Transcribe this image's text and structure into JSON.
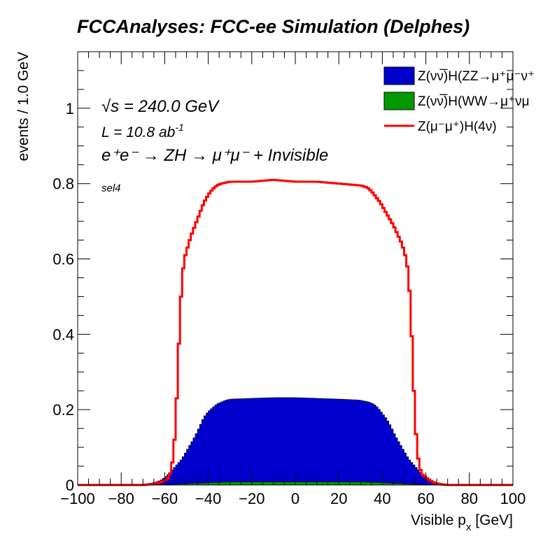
{
  "chart_data": {
    "type": "area",
    "title": "FCCAnalyses: FCC-ee Simulation (Delphes)",
    "xlabel_main": "Visible p",
    "xlabel_sub": "x",
    "xlabel_unit": " [GeV]",
    "ylabel": "events / 1.0 GeV",
    "xlim": [
      -100,
      100
    ],
    "ylim": [
      0,
      1.15
    ],
    "x_ticks": [
      "−100",
      "−80",
      "−60",
      "−40",
      "−20",
      "0",
      "20",
      "40",
      "60",
      "80",
      "100"
    ],
    "y_ticks": [
      "0",
      "0.2",
      "0.4",
      "0.6",
      "0.8",
      "1"
    ],
    "grid": false,
    "legend_placement": "top-right",
    "annotations": {
      "sqrt_symbol": "√",
      "sqrt_s": "s",
      "energy": " = 240.0 GeV",
      "lumi": "L = 10.8 ab",
      "lumi_exp": "-1",
      "process": "e⁺e⁻ → ZH → μ⁺μ⁻ + Invisible",
      "selection": "sel4"
    },
    "series": [
      {
        "name": "Z(νν̅)H(ZZ→μ⁺μ⁻ν⁺",
        "kind": "stack-fill",
        "color": "#0000cc",
        "points": [
          [
            -80,
            0
          ],
          [
            -70,
            0.002
          ],
          [
            -65,
            0.006
          ],
          [
            -62,
            0.012
          ],
          [
            -60,
            0.02
          ],
          [
            -58,
            0.03
          ],
          [
            -55,
            0.05
          ],
          [
            -52,
            0.07
          ],
          [
            -50,
            0.09
          ],
          [
            -48,
            0.11
          ],
          [
            -46,
            0.13
          ],
          [
            -44,
            0.155
          ],
          [
            -42,
            0.18
          ],
          [
            -40,
            0.195
          ],
          [
            -38,
            0.205
          ],
          [
            -36,
            0.215
          ],
          [
            -34,
            0.22
          ],
          [
            -32,
            0.225
          ],
          [
            -30,
            0.228
          ],
          [
            -20,
            0.23
          ],
          [
            -10,
            0.232
          ],
          [
            0,
            0.232
          ],
          [
            10,
            0.23
          ],
          [
            20,
            0.228
          ],
          [
            28,
            0.226
          ],
          [
            30,
            0.225
          ],
          [
            34,
            0.22
          ],
          [
            36,
            0.215
          ],
          [
            38,
            0.205
          ],
          [
            40,
            0.19
          ],
          [
            42,
            0.175
          ],
          [
            44,
            0.155
          ],
          [
            46,
            0.13
          ],
          [
            48,
            0.11
          ],
          [
            50,
            0.09
          ],
          [
            52,
            0.07
          ],
          [
            55,
            0.05
          ],
          [
            58,
            0.03
          ],
          [
            60,
            0.02
          ],
          [
            62,
            0.012
          ],
          [
            65,
            0.006
          ],
          [
            70,
            0.002
          ],
          [
            80,
            0
          ]
        ]
      },
      {
        "name": "Z(νν̅)H(WW→μ⁺νμ",
        "kind": "stack-fill",
        "color": "#009900",
        "points": [
          [
            -65,
            0
          ],
          [
            -55,
            0.002
          ],
          [
            -40,
            0.006
          ],
          [
            -30,
            0.008
          ],
          [
            -20,
            0.008
          ],
          [
            0,
            0.008
          ],
          [
            20,
            0.008
          ],
          [
            30,
            0.008
          ],
          [
            40,
            0.006
          ],
          [
            55,
            0.002
          ],
          [
            65,
            0
          ]
        ]
      },
      {
        "name": "Z(μ⁻μ⁺)H(4ν)",
        "kind": "line",
        "color": "#ff0000",
        "points": [
          [
            -100,
            0
          ],
          [
            -70,
            0
          ],
          [
            -68,
            0.001
          ],
          [
            -66,
            0.002
          ],
          [
            -64,
            0.004
          ],
          [
            -62,
            0.007
          ],
          [
            -60,
            0.012
          ],
          [
            -58,
            0.02
          ],
          [
            -57,
            0.04
          ],
          [
            -56,
            0.08
          ],
          [
            -55,
            0.16
          ],
          [
            -54,
            0.3
          ],
          [
            -53,
            0.45
          ],
          [
            -52,
            0.55
          ],
          [
            -51,
            0.6
          ],
          [
            -50,
            0.62
          ],
          [
            -49,
            0.64
          ],
          [
            -48,
            0.66
          ],
          [
            -46,
            0.69
          ],
          [
            -44,
            0.72
          ],
          [
            -42,
            0.75
          ],
          [
            -40,
            0.77
          ],
          [
            -38,
            0.785
          ],
          [
            -36,
            0.795
          ],
          [
            -34,
            0.8
          ],
          [
            -30,
            0.805
          ],
          [
            -20,
            0.805
          ],
          [
            -10,
            0.81
          ],
          [
            0,
            0.805
          ],
          [
            10,
            0.805
          ],
          [
            20,
            0.8
          ],
          [
            30,
            0.795
          ],
          [
            33,
            0.79
          ],
          [
            35,
            0.78
          ],
          [
            37,
            0.765
          ],
          [
            39,
            0.75
          ],
          [
            41,
            0.73
          ],
          [
            43,
            0.71
          ],
          [
            45,
            0.69
          ],
          [
            47,
            0.665
          ],
          [
            49,
            0.64
          ],
          [
            50,
            0.62
          ],
          [
            51,
            0.6
          ],
          [
            52,
            0.56
          ],
          [
            53,
            0.47
          ],
          [
            54,
            0.32
          ],
          [
            55,
            0.18
          ],
          [
            56,
            0.09
          ],
          [
            57,
            0.05
          ],
          [
            58,
            0.03
          ],
          [
            60,
            0.02
          ],
          [
            62,
            0.012
          ],
          [
            64,
            0.006
          ],
          [
            66,
            0.003
          ],
          [
            68,
            0.001
          ],
          [
            70,
            0
          ],
          [
            100,
            0
          ]
        ]
      }
    ]
  }
}
